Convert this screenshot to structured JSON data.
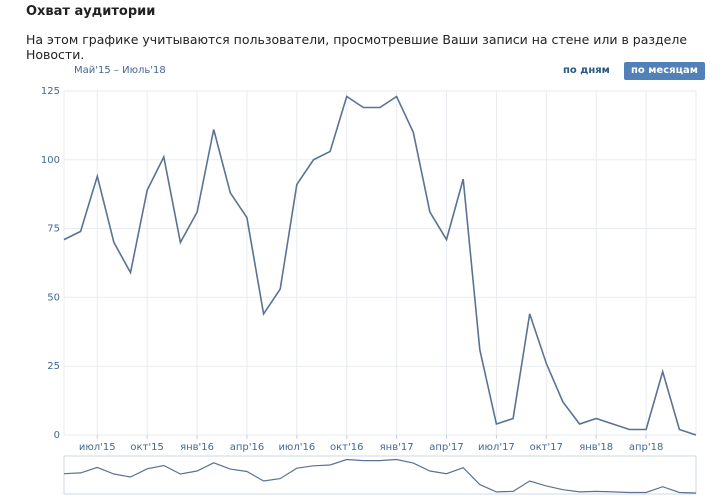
{
  "header": {
    "title": "Охват аудитории",
    "subtitle": "На этом графике учитываются пользователи, просмотревшие Ваши записи на стене или в разделе Новости."
  },
  "controls": {
    "range_label": "Май'15 – Июль'18",
    "by_days_label": "по дням",
    "by_months_label": "по месяцам",
    "active": "by_months"
  },
  "colors": {
    "line": "#5a7393",
    "grid": "#e7ebf0",
    "tick": "#45678f",
    "accent": "#5181b8"
  },
  "chart_data": {
    "type": "line",
    "title": "Охват аудитории",
    "xlabel": "",
    "ylabel": "",
    "ylim": [
      0,
      125
    ],
    "yticks": [
      0,
      25,
      50,
      75,
      100,
      125
    ],
    "grid": true,
    "x": [
      "2015-05",
      "2015-06",
      "2015-07",
      "2015-08",
      "2015-09",
      "2015-10",
      "2015-11",
      "2015-12",
      "2016-01",
      "2016-02",
      "2016-03",
      "2016-04",
      "2016-05",
      "2016-06",
      "2016-07",
      "2016-08",
      "2016-09",
      "2016-10",
      "2016-11",
      "2016-12",
      "2017-01",
      "2017-02",
      "2017-03",
      "2017-04",
      "2017-05",
      "2017-06",
      "2017-07",
      "2017-08",
      "2017-09",
      "2017-10",
      "2017-11",
      "2017-12",
      "2018-01",
      "2018-02",
      "2018-03",
      "2018-04",
      "2018-05",
      "2018-06",
      "2018-07"
    ],
    "series": [
      {
        "values": [
          71,
          74,
          94,
          70,
          59,
          89,
          101,
          70,
          81,
          111,
          88,
          79,
          44,
          53,
          91,
          100,
          103,
          123,
          119,
          119,
          123,
          110,
          81,
          71,
          93,
          31,
          4,
          6,
          44,
          26,
          12,
          4,
          6,
          4,
          2,
          2,
          23,
          2,
          0
        ]
      }
    ],
    "xtick_labels": [
      "июл'15",
      "окт'15",
      "янв'16",
      "апр'16",
      "июл'16",
      "окт'16",
      "янв'17",
      "апр'17",
      "июл'17",
      "окт'17",
      "янв'18",
      "апр'18"
    ],
    "xtick_positions": [
      "2015-07",
      "2015-10",
      "2016-01",
      "2016-04",
      "2016-07",
      "2016-10",
      "2017-01",
      "2017-04",
      "2017-07",
      "2017-10",
      "2018-01",
      "2018-04"
    ]
  }
}
